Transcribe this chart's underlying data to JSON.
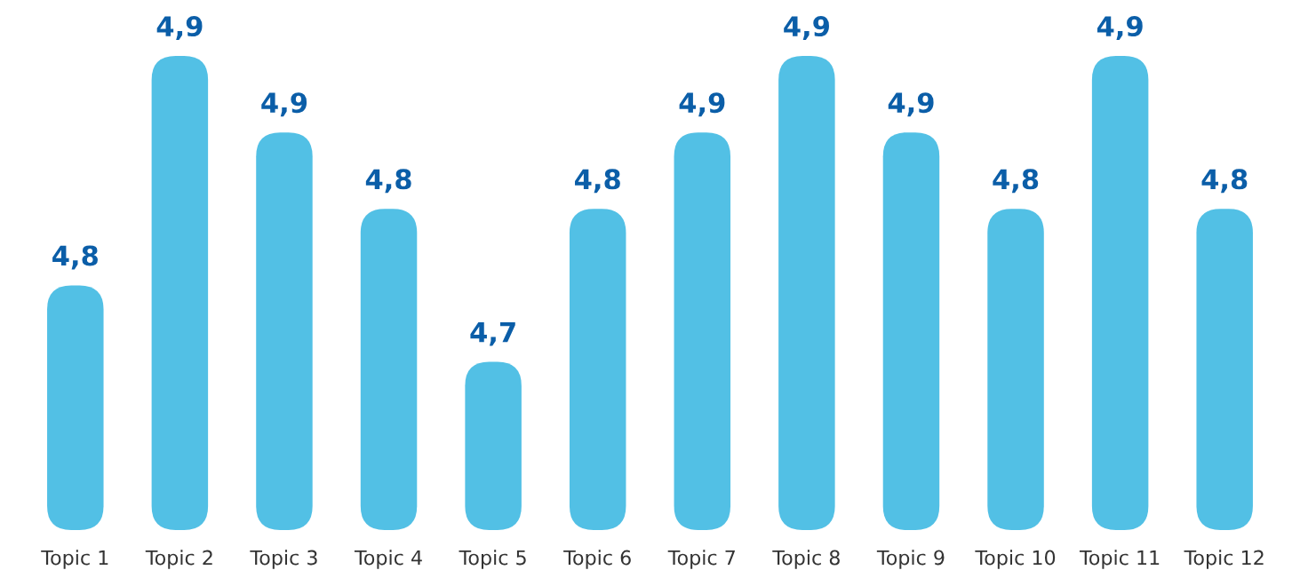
{
  "chart_data": {
    "type": "bar",
    "color": "#52c0e5",
    "ylim": [
      4.6,
      4.91
    ],
    "tick_labels": "x",
    "categories": [
      "Topic 1",
      "Topic 2",
      "Topic 3",
      "Topic 4",
      "Topic 5",
      "Topic 6",
      "Topic 7",
      "Topic 8",
      "Topic 9",
      "Topic 10",
      "Topic 11",
      "Topic 12"
    ],
    "values": [
      4.76,
      4.91,
      4.86,
      4.81,
      4.71,
      4.81,
      4.86,
      4.91,
      4.86,
      4.81,
      4.91,
      4.81
    ],
    "value_labels": [
      "4,8",
      "4,9",
      "4,9",
      "4,8",
      "4,7",
      "4,8",
      "4,9",
      "4,9",
      "4,9",
      "4,8",
      "4,9",
      "4,8"
    ]
  }
}
